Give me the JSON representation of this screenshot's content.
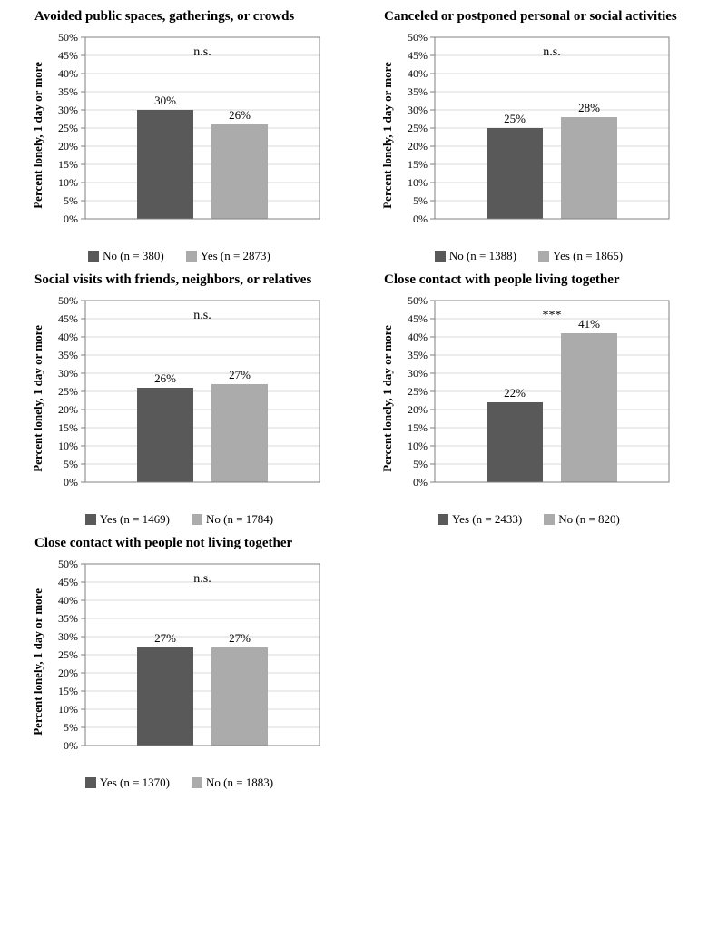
{
  "common": {
    "ylabel": "Percent lonely, 1 day or more",
    "ylim": [
      0,
      50
    ],
    "ytick_step": 5,
    "grid_color": "#d9d9d9",
    "border_color": "#808080",
    "background_color": "#ffffff",
    "bar_colors": {
      "dark": "#595959",
      "light": "#ababab"
    },
    "tick_fontsize": 12,
    "label_fontsize": 13,
    "title_fontsize": 15,
    "value_fontsize": 13,
    "sig_fontsize": 14
  },
  "panels": [
    {
      "title": "Avoided public spaces, gatherings, or crowds",
      "significance": "n.s.",
      "bars": [
        {
          "value": 30,
          "label": "30%",
          "color": "dark",
          "legend": "No (n = 380)"
        },
        {
          "value": 26,
          "label": "26%",
          "color": "light",
          "legend": "Yes (n = 2873)"
        }
      ]
    },
    {
      "title": "Canceled or postponed personal or social activities",
      "significance": "n.s.",
      "bars": [
        {
          "value": 25,
          "label": "25%",
          "color": "dark",
          "legend": "No (n = 1388)"
        },
        {
          "value": 28,
          "label": "28%",
          "color": "light",
          "legend": "Yes (n = 1865)"
        }
      ]
    },
    {
      "title": "Social visits with friends, neighbors, or relatives",
      "significance": "n.s.",
      "bars": [
        {
          "value": 26,
          "label": "26%",
          "color": "dark",
          "legend": "Yes (n = 1469)"
        },
        {
          "value": 27,
          "label": "27%",
          "color": "light",
          "legend": "No (n = 1784)"
        }
      ]
    },
    {
      "title": "Close contact with people living together",
      "significance": "***",
      "bars": [
        {
          "value": 22,
          "label": "22%",
          "color": "dark",
          "legend": "Yes (n = 2433)"
        },
        {
          "value": 41,
          "label": "41%",
          "color": "light",
          "legend": "No (n = 820)"
        }
      ]
    },
    {
      "title": "Close contact with people not living together",
      "significance": "n.s.",
      "bars": [
        {
          "value": 27,
          "label": "27%",
          "color": "dark",
          "legend": "Yes (n = 1370)"
        },
        {
          "value": 27,
          "label": "27%",
          "color": "light",
          "legend": "No (n = 1883)"
        }
      ]
    }
  ]
}
